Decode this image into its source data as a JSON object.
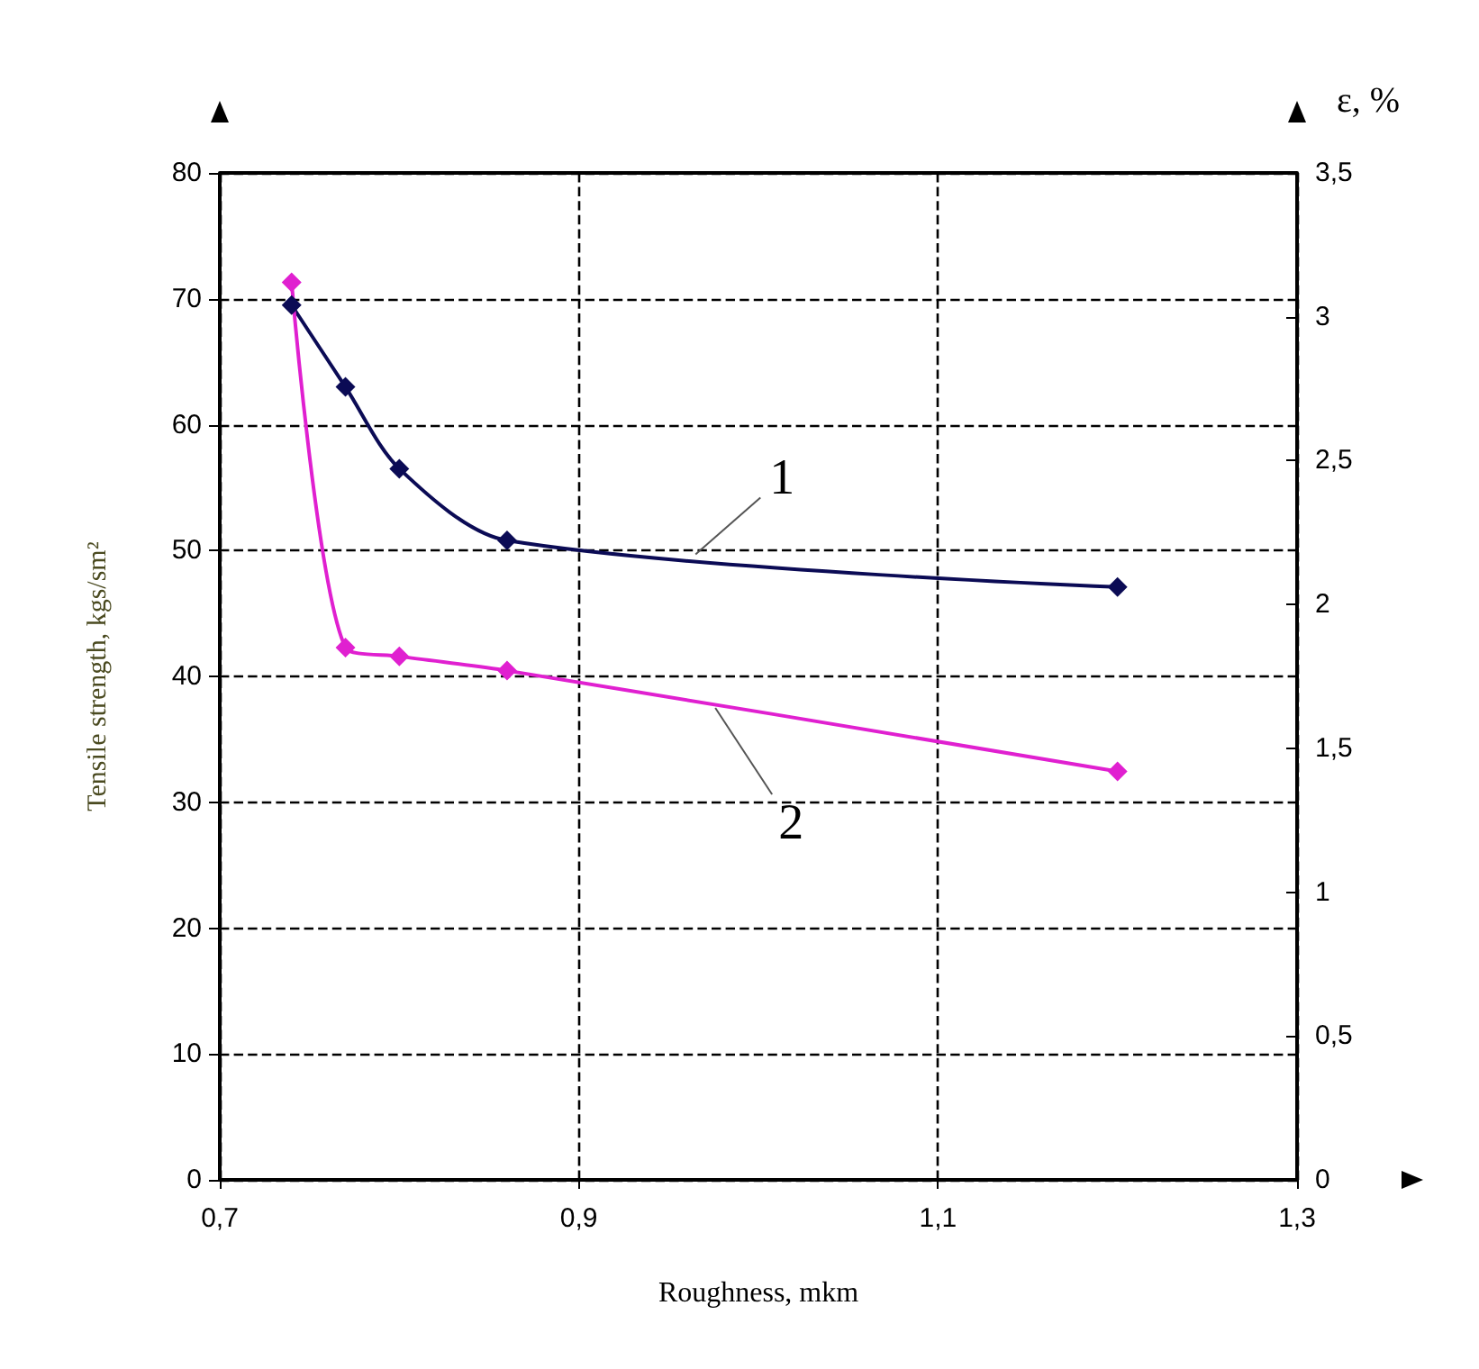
{
  "chart_data": {
    "type": "line",
    "xlabel": "Roughness, mkm",
    "ylabel": "Tensile strength, kgs/sm²",
    "y2label": "ε, %",
    "series": [
      {
        "color": "#0b0b55",
        "x": [
          0.74,
          0.77,
          0.8,
          0.86,
          1.2
        ],
        "values": [
          69.5,
          63.0,
          56.5,
          50.8,
          47.1
        ]
      },
      {
        "color": "#e020d0",
        "axis": "y2",
        "x": [
          0.74,
          0.77,
          0.8,
          0.86,
          1.2
        ],
        "values": [
          3.12,
          1.85,
          1.82,
          1.77,
          1.42
        ]
      }
    ],
    "xlim": [
      0.7,
      1.3
    ],
    "xticks": [
      {
        "value": 0.7,
        "label": "0,7"
      },
      {
        "value": 0.9,
        "label": "0,9"
      },
      {
        "value": 1.1,
        "label": "1,1"
      },
      {
        "value": 1.3,
        "label": "1,3"
      }
    ],
    "ylim": [
      0,
      80
    ],
    "yticks": [
      0,
      10,
      20,
      30,
      40,
      50,
      60,
      70,
      80
    ],
    "y2lim": [
      0,
      3.5
    ],
    "y2ticks": [
      0,
      {
        "value": 0.5,
        "label": "0,5"
      },
      1,
      {
        "value": 1.5,
        "label": "1,5"
      },
      2,
      {
        "value": 2.5,
        "label": "2,5"
      },
      3,
      {
        "value": 3.5,
        "label": "3,5"
      }
    ],
    "annotations": [
      {
        "text": "1",
        "x": 0.965,
        "y": 49.7
      },
      {
        "text": "2",
        "x": 0.976,
        "y": 37.5
      }
    ],
    "grid": true,
    "marker": "diamond",
    "line_style": "solid"
  }
}
